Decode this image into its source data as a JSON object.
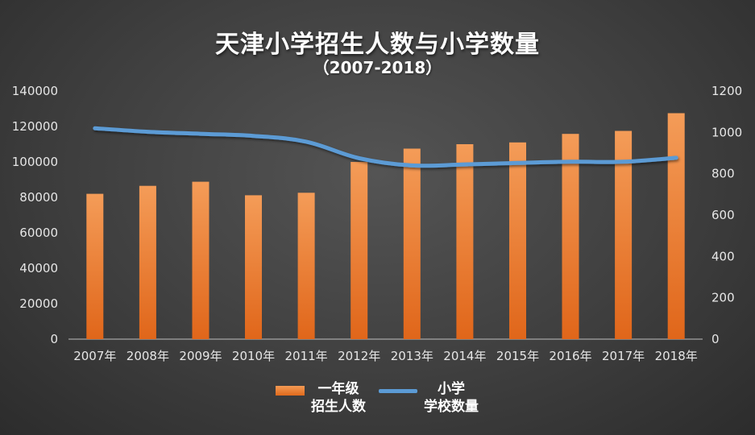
{
  "chart_data": {
    "type": "bar",
    "title": "天津小学招生人数与小学数量",
    "subtitle": "（2007-2018）",
    "categories": [
      "2007年",
      "2008年",
      "2009年",
      "2010年",
      "2011年",
      "2012年",
      "2013年",
      "2014年",
      "2015年",
      "2016年",
      "2017年",
      "2018年"
    ],
    "series": [
      {
        "name_lines": [
          "一年级",
          "招生人数"
        ],
        "type": "bar",
        "axis": "left",
        "color": "#ee7f33",
        "values": [
          82000,
          86500,
          88800,
          81200,
          82600,
          100000,
          107500,
          110000,
          111000,
          115800,
          117500,
          127500
        ]
      },
      {
        "name_lines": [
          "小学",
          "学校数量"
        ],
        "type": "line",
        "axis": "right",
        "color": "#5b9bd5",
        "values": [
          1020,
          1003,
          993,
          983,
          955,
          875,
          840,
          845,
          852,
          858,
          858,
          877
        ]
      }
    ],
    "y_left": {
      "min": 0,
      "max": 140000,
      "ticks": [
        "0",
        "20000",
        "40000",
        "60000",
        "80000",
        "100000",
        "120000",
        "140000"
      ]
    },
    "y_right": {
      "min": 0,
      "max": 1200,
      "ticks": [
        "0",
        "200",
        "400",
        "600",
        "800",
        "1000",
        "1200"
      ]
    },
    "grid": false,
    "legend_position": "bottom"
  }
}
